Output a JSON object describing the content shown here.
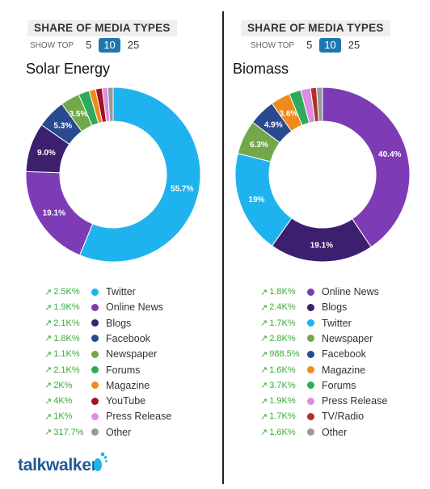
{
  "colors": {
    "twitter": "#1eb3ef",
    "online_news": "#7d3cb5",
    "blogs": "#3c1f6e",
    "facebook": "#2a4a8f",
    "newspaper": "#73a84a",
    "forums": "#2eaa5c",
    "magazine": "#f08a1c",
    "youtube": "#a31120",
    "press_release": "#dd8de0",
    "other": "#999999",
    "tv_radio": "#b0302a",
    "delta": "#3aaa3a",
    "active": "#1e78ae"
  },
  "panels": [
    {
      "header": "SHARE OF MEDIA TYPES",
      "show_top_label": "SHOW TOP",
      "options": [
        "5",
        "10",
        "25"
      ],
      "active_option": "10",
      "chart_data": {
        "type": "pie",
        "title": "Solar Energy",
        "slices": [
          {
            "name": "Twitter",
            "value": 55.7,
            "label": "55.7%",
            "color": "#1eb3ef"
          },
          {
            "name": "Online News",
            "value": 19.1,
            "label": "19.1%",
            "color": "#7d3cb5"
          },
          {
            "name": "Blogs",
            "value": 9.0,
            "label": "9.0%",
            "color": "#3c1f6e"
          },
          {
            "name": "Facebook",
            "value": 5.3,
            "label": "5.3%",
            "color": "#2a4a8f"
          },
          {
            "name": "Newspaper",
            "value": 3.5,
            "label": "3.5%",
            "color": "#73a84a"
          },
          {
            "name": "Forums",
            "value": 2.0,
            "label": "",
            "color": "#2eaa5c"
          },
          {
            "name": "Magazine",
            "value": 1.2,
            "label": "",
            "color": "#f08a1c"
          },
          {
            "name": "YouTube",
            "value": 1.2,
            "label": "",
            "color": "#a31120"
          },
          {
            "name": "Press Release",
            "value": 1.0,
            "label": "",
            "color": "#dd8de0"
          },
          {
            "name": "Other",
            "value": 1.0,
            "label": "",
            "color": "#999999"
          }
        ]
      },
      "legend": [
        {
          "delta": "2.5K%",
          "name": "Twitter",
          "color": "#1eb3ef"
        },
        {
          "delta": "1.9K%",
          "name": "Online News",
          "color": "#7d3cb5"
        },
        {
          "delta": "2.1K%",
          "name": "Blogs",
          "color": "#3c1f6e"
        },
        {
          "delta": "1.8K%",
          "name": "Facebook",
          "color": "#2a4a8f"
        },
        {
          "delta": "1.1K%",
          "name": "Newspaper",
          "color": "#73a84a"
        },
        {
          "delta": "2.1K%",
          "name": "Forums",
          "color": "#2eaa5c"
        },
        {
          "delta": "2K%",
          "name": "Magazine",
          "color": "#f08a1c"
        },
        {
          "delta": "4K%",
          "name": "YouTube",
          "color": "#a31120"
        },
        {
          "delta": "1K%",
          "name": "Press Release",
          "color": "#dd8de0"
        },
        {
          "delta": "317.7%",
          "name": "Other",
          "color": "#999999"
        }
      ]
    },
    {
      "header": "SHARE OF MEDIA TYPES",
      "show_top_label": "SHOW TOP",
      "options": [
        "5",
        "10",
        "25"
      ],
      "active_option": "10",
      "chart_data": {
        "type": "pie",
        "title": "Biomass",
        "slices": [
          {
            "name": "Online News",
            "value": 40.4,
            "label": "40.4%",
            "color": "#7d3cb5"
          },
          {
            "name": "Blogs",
            "value": 19.1,
            "label": "19.1%",
            "color": "#3c1f6e"
          },
          {
            "name": "Twitter",
            "value": 19.0,
            "label": "19%",
            "color": "#1eb3ef"
          },
          {
            "name": "Newspaper",
            "value": 6.3,
            "label": "6.3%",
            "color": "#73a84a"
          },
          {
            "name": "Facebook",
            "value": 4.9,
            "label": "4.9%",
            "color": "#2a4a8f"
          },
          {
            "name": "Magazine",
            "value": 3.6,
            "label": "3.6%",
            "color": "#f08a1c"
          },
          {
            "name": "Forums",
            "value": 2.2,
            "label": "",
            "color": "#2eaa5c"
          },
          {
            "name": "Press Release",
            "value": 1.8,
            "label": "",
            "color": "#dd8de0"
          },
          {
            "name": "TV/Radio",
            "value": 1.1,
            "label": "",
            "color": "#b0302a"
          },
          {
            "name": "Other",
            "value": 1.1,
            "label": "",
            "color": "#999999"
          }
        ]
      },
      "legend": [
        {
          "delta": "1.8K%",
          "name": "Online News",
          "color": "#7d3cb5"
        },
        {
          "delta": "2.4K%",
          "name": "Blogs",
          "color": "#3c1f6e"
        },
        {
          "delta": "1.7K%",
          "name": "Twitter",
          "color": "#1eb3ef"
        },
        {
          "delta": "2.8K%",
          "name": "Newspaper",
          "color": "#73a84a"
        },
        {
          "delta": "988.5%",
          "name": "Facebook",
          "color": "#2a4a8f"
        },
        {
          "delta": "1.6K%",
          "name": "Magazine",
          "color": "#f08a1c"
        },
        {
          "delta": "3.7K%",
          "name": "Forums",
          "color": "#2eaa5c"
        },
        {
          "delta": "1.9K%",
          "name": "Press Release",
          "color": "#dd8de0"
        },
        {
          "delta": "1.7K%",
          "name": "TV/Radio",
          "color": "#b0302a"
        },
        {
          "delta": "1.6K%",
          "name": "Other",
          "color": "#999999"
        }
      ]
    }
  ],
  "logo": {
    "text": "talkwalker"
  }
}
